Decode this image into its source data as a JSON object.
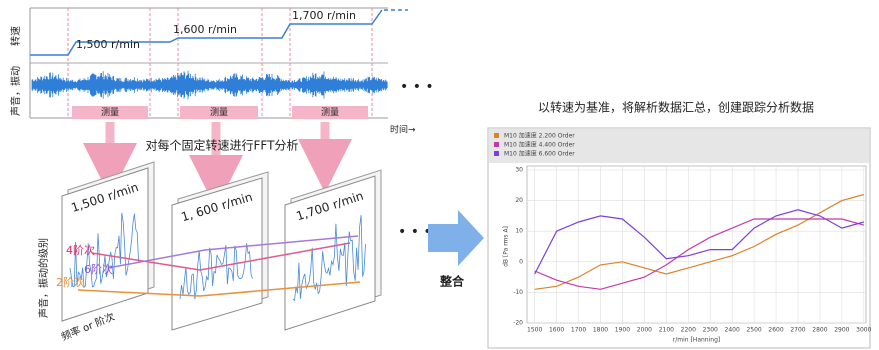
{
  "top_timeline": {
    "y_label_speed": "转速",
    "y_label_signal": "声音，振动",
    "speeds": [
      "1,500 r/min",
      "1,600 r/min",
      "1,700 r/min"
    ],
    "measure_labels": [
      "测量",
      "测量",
      "测量"
    ],
    "time_label": "时间→"
  },
  "fft_caption": "对每个固定转速进行FFT分析",
  "panels": [
    {
      "label": "1,500 r/min"
    },
    {
      "label": "1, 600 r/min"
    },
    {
      "label": "1,700 r/min"
    }
  ],
  "order_labels": [
    "4阶次",
    "6阶次",
    "2阶次"
  ],
  "axis_labels": {
    "level": "声音，振动的级别",
    "frequency": "频率 or 阶次"
  },
  "merge_label": "整合",
  "summary_caption": "以转速为基准，将解析数据汇总，创建跟踪分析数据",
  "chart_data": {
    "type": "line",
    "x": [
      1500,
      1600,
      1700,
      1800,
      1900,
      2000,
      2100,
      2200,
      2300,
      2400,
      2500,
      2600,
      2700,
      2800,
      2900,
      3000
    ],
    "xlim": [
      1465,
      3010
    ],
    "ylim": [
      -20,
      30
    ],
    "xticks": [
      1500,
      1600,
      1700,
      1800,
      1900,
      2000,
      2100,
      2200,
      2300,
      2400,
      2500,
      2600,
      2700,
      2800,
      2900,
      3000
    ],
    "yticks": [
      -20,
      -10,
      0,
      10,
      20,
      30
    ],
    "xlabel": "r/min [Hanning]",
    "ylabel": "dB [Pa rms A]",
    "grid": true,
    "series": [
      {
        "name": "M10 加速度 2.200 Order",
        "color": "#d9832b",
        "values": [
          -9,
          -8,
          -5,
          -1,
          0,
          -2,
          -4,
          -2,
          0,
          2,
          5,
          9,
          12,
          16,
          20,
          22
        ]
      },
      {
        "name": "M10 加速度 4.400 Order",
        "color": "#c43aa8",
        "values": [
          -3,
          -6,
          -8,
          -9,
          -7,
          -5,
          -1,
          4,
          8,
          11,
          14,
          14,
          14,
          14,
          14,
          12
        ]
      },
      {
        "name": "M10 加速度 6.600 Order",
        "color": "#7b3fe0",
        "values": [
          -4,
          10,
          13,
          15,
          14,
          8,
          1,
          2,
          4,
          4,
          11,
          15,
          17,
          15,
          11,
          13
        ]
      }
    ]
  }
}
